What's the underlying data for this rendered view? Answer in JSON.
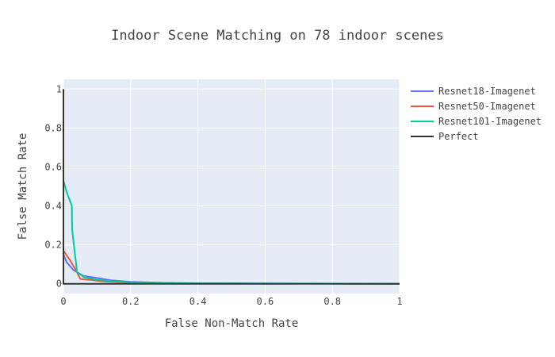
{
  "chart_data": {
    "type": "line",
    "title": "Indoor Scene Matching on 78 indoor scenes",
    "xlabel": "False Non-Match Rate",
    "ylabel": "False Match Rate",
    "xlim": [
      0,
      1
    ],
    "ylim": [
      -0.05,
      1.05
    ],
    "xticks": [
      0,
      0.2,
      0.4,
      0.6,
      0.8,
      1
    ],
    "xtick_labels": [
      "0",
      "0.2",
      "0.4",
      "0.6",
      "0.8",
      "1"
    ],
    "yticks": [
      0,
      0.2,
      0.4,
      0.6,
      0.8,
      1
    ],
    "ytick_labels": [
      "0",
      "0.2",
      "0.4",
      "0.6",
      "0.8",
      "1"
    ],
    "grid": true,
    "legend_position": "right",
    "plot_background": "#e5ecf6",
    "series": [
      {
        "name": "Resnet18-Imagenet",
        "color": "#636efa",
        "x": [
          0,
          0.01,
          0.03,
          0.06,
          0.1,
          0.14,
          0.2,
          0.3,
          0.4,
          0.6,
          0.8,
          1
        ],
        "y": [
          0.15,
          0.11,
          0.07,
          0.04,
          0.03,
          0.018,
          0.01,
          0.005,
          0.003,
          0.002,
          0.001,
          0
        ]
      },
      {
        "name": "Resnet50-Imagenet",
        "color": "#ef553b",
        "x": [
          0,
          0.02,
          0.04,
          0.05,
          0.08,
          0.12,
          0.2,
          0.3,
          0.4,
          0.6,
          0.8,
          1
        ],
        "y": [
          0.17,
          0.12,
          0.06,
          0.025,
          0.02,
          0.012,
          0.006,
          0.003,
          0.002,
          0.001,
          0.001,
          0
        ]
      },
      {
        "name": "Resnet101-Imagenet",
        "color": "#00cc96",
        "x": [
          0,
          0.01,
          0.025,
          0.026,
          0.033,
          0.038,
          0.04,
          0.06,
          0.1,
          0.15,
          0.2,
          0.3,
          0.4,
          0.6,
          0.8,
          1
        ],
        "y": [
          0.53,
          0.47,
          0.4,
          0.28,
          0.17,
          0.1,
          0.06,
          0.035,
          0.02,
          0.012,
          0.008,
          0.004,
          0.002,
          0.001,
          0.001,
          0
        ]
      },
      {
        "name": "Perfect",
        "color": "#333333",
        "x": [
          0,
          0,
          1
        ],
        "y": [
          1,
          0,
          0
        ]
      }
    ]
  }
}
